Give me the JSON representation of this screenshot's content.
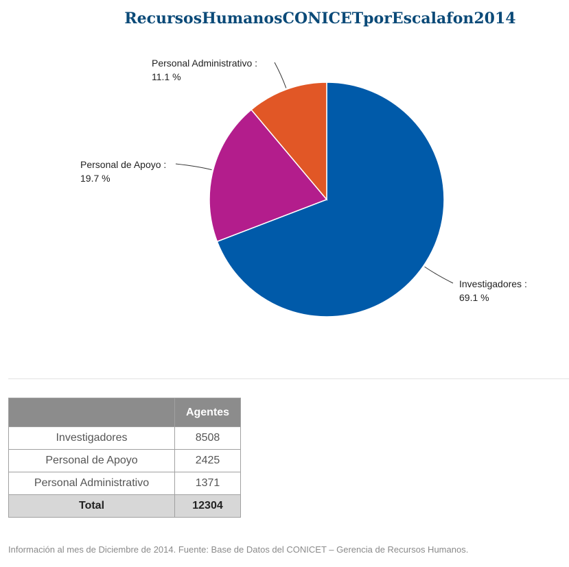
{
  "chart_data": {
    "type": "pie",
    "title": "RecursosHumanosCONICETporEscalafon2014",
    "slices": [
      {
        "label": "Investigadores :",
        "percent_label": "69.1 %",
        "value": 69.1,
        "color": "#005aa9"
      },
      {
        "label": "Personal de Apoyo :",
        "percent_label": "19.7 %",
        "value": 19.7,
        "color": "#b31d8c"
      },
      {
        "label": "Personal Administrativo :",
        "percent_label": "11.1 %",
        "value": 11.1,
        "color": "#e15726"
      }
    ]
  },
  "table": {
    "header": [
      "",
      "Agentes"
    ],
    "rows": [
      {
        "name": "Investigadores",
        "value": "8508"
      },
      {
        "name": "Personal de Apoyo",
        "value": "2425"
      },
      {
        "name": "Personal Administrativo",
        "value": "1371"
      }
    ],
    "total": {
      "name": "Total",
      "value": "12304"
    }
  },
  "footnote": "Información al mes de Diciembre de 2014. Fuente: Base de Datos del CONICET – Gerencia de Recursos Humanos."
}
